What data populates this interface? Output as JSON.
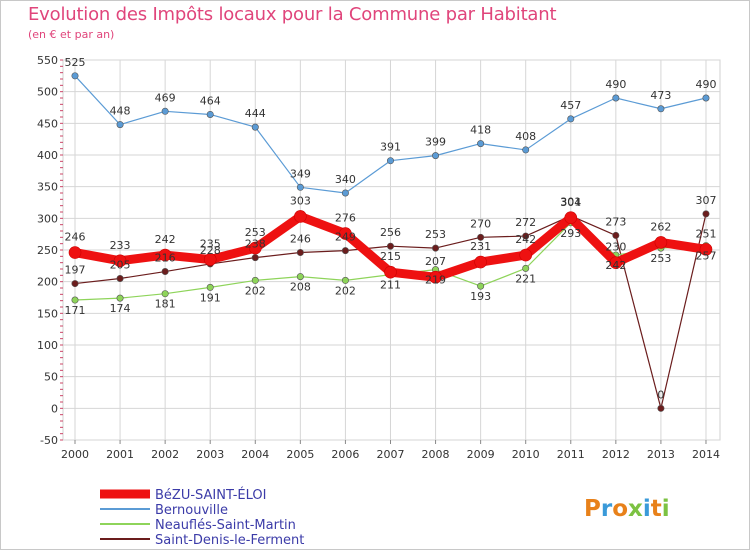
{
  "header": {
    "title": "Evolution des Impôts locaux pour la Commune par Habitant",
    "subtitle": "(en € et par an)"
  },
  "brand": {
    "text": "Proxiti"
  },
  "colors": {
    "title": "#e0457b",
    "legend_text": "#3b3ba8",
    "grid": "#d6d6d6"
  },
  "chart_data": {
    "type": "line",
    "title": "Evolution des Impôts locaux pour la Commune par Habitant",
    "subtitle": "(en € et par an)",
    "xlabel": "",
    "ylabel": "",
    "ylim": [
      -50,
      550
    ],
    "yticks": [
      -50,
      0,
      50,
      100,
      150,
      200,
      250,
      300,
      350,
      400,
      450,
      500,
      550
    ],
    "categories": [
      "2000",
      "2001",
      "2002",
      "2003",
      "2004",
      "2005",
      "2006",
      "2007",
      "2008",
      "2009",
      "2010",
      "2011",
      "2012",
      "2013",
      "2014"
    ],
    "grid": true,
    "legend_position": "bottom-left",
    "series": [
      {
        "name": "Bernouville",
        "color": "#5b9bd5",
        "width": 1.2,
        "values": [
          525,
          448,
          469,
          464,
          444,
          349,
          340,
          391,
          399,
          418,
          408,
          457,
          490,
          473,
          490
        ]
      },
      {
        "name": "Saint-Denis-le-Ferment",
        "color": "#6b1d1d",
        "width": 1.2,
        "values": [
          197,
          205,
          216,
          228,
          238,
          246,
          249,
          256,
          253,
          270,
          272,
          304,
          273,
          0,
          307
        ]
      },
      {
        "name": "Neauflés-Saint-Martin",
        "color": "#8ed45a",
        "width": 1.2,
        "values": [
          171,
          174,
          181,
          191,
          202,
          208,
          202,
          211,
          219,
          193,
          221,
          293,
          242,
          253,
          257
        ]
      },
      {
        "name": "BéZU-SAINT-ÉLOI",
        "color": "#ee1111",
        "width": 9,
        "values": [
          246,
          233,
          242,
          235,
          253,
          303,
          276,
          215,
          207,
          231,
          242,
          301,
          230,
          262,
          251
        ]
      }
    ],
    "legend_order": [
      "BéZU-SAINT-ÉLOI",
      "Bernouville",
      "Neauflés-Saint-Martin",
      "Saint-Denis-le-Ferment"
    ]
  }
}
